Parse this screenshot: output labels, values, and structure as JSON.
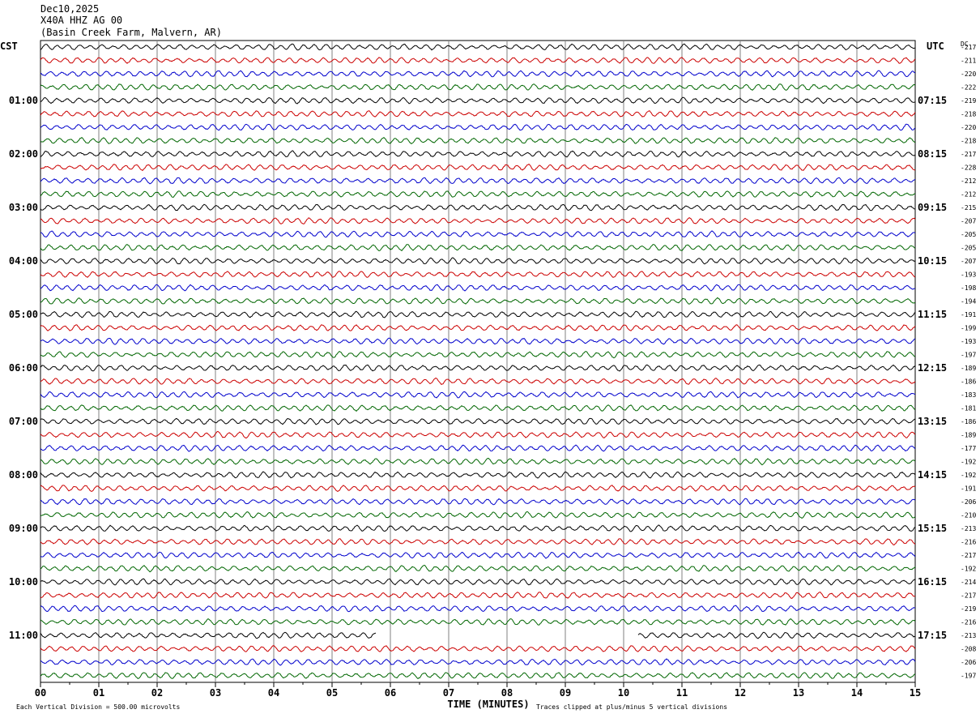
{
  "header": {
    "date": "Dec10,2025",
    "station": "X40A HHZ AG 00",
    "location": "(Basin Creek Farm, Malvern, AR)"
  },
  "chart_data": {
    "type": "line",
    "title": "",
    "left_zone_label": "CST",
    "right_zone_label": "UTC",
    "dc_header": "DC",
    "xlabel": "TIME (MINUTES)",
    "x_ticks": [
      "00",
      "01",
      "02",
      "03",
      "04",
      "05",
      "06",
      "07",
      "08",
      "09",
      "10",
      "11",
      "12",
      "13",
      "14",
      "15"
    ],
    "xlim": [
      0,
      15
    ],
    "row_interval_minutes": 15,
    "left_hour_labels": [
      "01:00",
      "02:00",
      "03:00",
      "04:00",
      "05:00",
      "06:00",
      "07:00",
      "08:00",
      "09:00",
      "10:00",
      "11:00"
    ],
    "right_hour_labels": [
      "07:15",
      "08:15",
      "09:15",
      "10:15",
      "11:15",
      "12:15",
      "13:15",
      "14:15",
      "15:15",
      "16:15",
      "17:15"
    ],
    "trace_colors": [
      "#000000",
      "#cc0000",
      "#0000cc",
      "#006600"
    ],
    "dc_offsets": [
      -217,
      -211,
      -220,
      -222,
      -219,
      -218,
      -220,
      -218,
      -217,
      -228,
      -212,
      -212,
      -215,
      -207,
      -205,
      -205,
      -207,
      -193,
      -198,
      -194,
      -191,
      -199,
      -193,
      -197,
      -189,
      -186,
      -183,
      -181,
      -186,
      -189,
      -177,
      -192,
      -192,
      -191,
      -206,
      -210,
      -213,
      -216,
      -217,
      -192,
      -214,
      -217,
      -219,
      -216,
      -213,
      -208,
      -206,
      -197
    ],
    "last_row_gap_minutes": [
      5.75,
      10.25
    ],
    "footer_left": "Each Vertical Division =  500.00 microvolts",
    "footer_right": "Traces clipped at plus/minus 5 vertical divisions"
  }
}
